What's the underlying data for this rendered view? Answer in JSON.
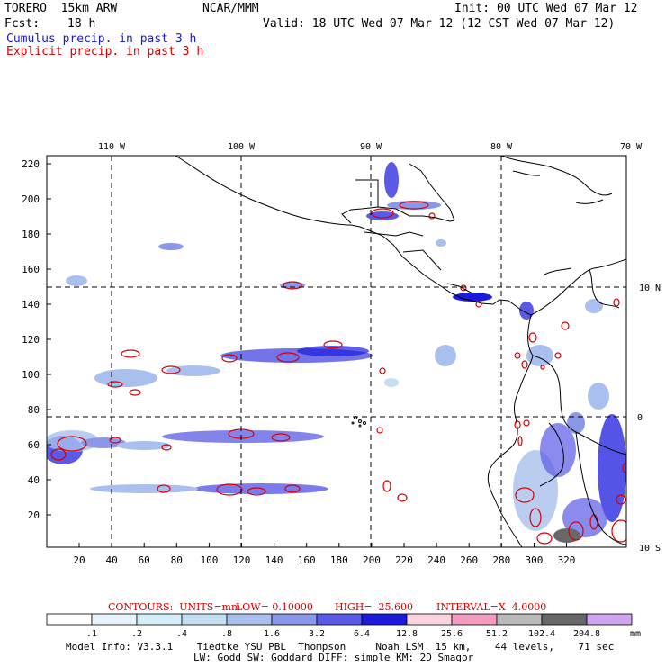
{
  "header": {
    "model": "TORERO  15km ARW",
    "org": "NCAR/MMM",
    "init": "Init: 00 UTC Wed 07 Mar 12",
    "fcst_label": "Fcst:",
    "fcst_value": "18 h",
    "valid": "Valid: 18 UTC Wed 07 Mar 12 (12 CST Wed 07 Mar 12)",
    "line1": "Cumulus precip. in past 3 h",
    "line2": "Explicit precip. in past 3 h"
  },
  "colors": {
    "cumulus": "#1c1cc8",
    "explicit": "#d40000",
    "coast": "#000000"
  },
  "axes": {
    "top_labels": [
      "110 W",
      "100 W",
      "90 W",
      "80 W",
      "70 W"
    ],
    "right_labels": [
      "10 N",
      "0",
      "10 S"
    ],
    "left_ticks": [
      "220",
      "200",
      "180",
      "160",
      "140",
      "120",
      "100",
      "80",
      "60",
      "40",
      "20"
    ],
    "bottom_ticks": [
      "20",
      "40",
      "60",
      "80",
      "100",
      "120",
      "140",
      "160",
      "180",
      "200",
      "220",
      "240",
      "260",
      "280",
      "300",
      "320"
    ]
  },
  "contours": {
    "units": "CONTOURS:  UNITS=mm",
    "low": "LOW= 0.10000",
    "high": "HIGH=  25.600",
    "interval": "INTERVAL=X  4.0000"
  },
  "colorbar": {
    "labels": [
      ".1",
      ".2",
      ".4",
      ".8",
      "1.6",
      "3.2",
      "6.4",
      "12.8",
      "25.6",
      "51.2",
      "102.4",
      "204.8"
    ],
    "unit": "mm",
    "colors": [
      "#ffffff",
      "#e8f4fb",
      "#d6eef8",
      "#c4dff2",
      "#a9c0ee",
      "#8b98e8",
      "#5a5ae6",
      "#1b1bdd",
      "#f9d3dd",
      "#f39ac0",
      "#b9b9b9",
      "#686868",
      "#cfa3f0"
    ]
  },
  "footer": {
    "line1": "Model Info: V3.3.1    Tiedtke YSU PBL  Thompson     Noah LSM  15 km,    44 levels,    71 sec",
    "line2": "LW: Godd SW: Goddard DIFF: simple KM: 2D Smagor"
  }
}
